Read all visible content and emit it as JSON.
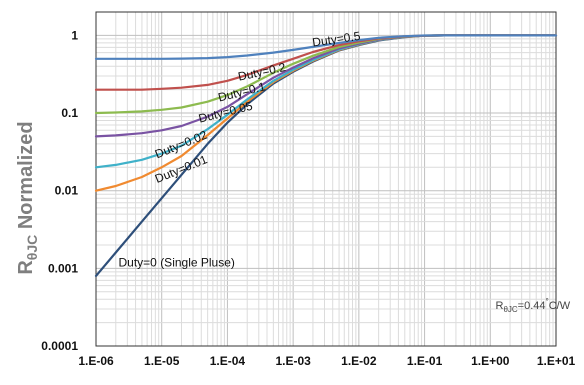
{
  "chart_data": {
    "type": "line",
    "title": "",
    "xlabel": "",
    "ylabel_main": "R",
    "ylabel_sub": "θJC",
    "ylabel_rest": " Normalized",
    "x_scale": "log",
    "y_scale": "log",
    "xlim": [
      1e-06,
      10
    ],
    "ylim": [
      0.0001,
      2
    ],
    "grid": true,
    "x_ticks": [
      1e-06,
      1e-05,
      0.0001,
      0.001,
      0.01,
      0.1,
      1,
      10
    ],
    "x_tick_labels": [
      "1.E-06",
      "1.E-05",
      "1.E-04",
      "1.E-03",
      "1.E-02",
      "1.E-01",
      "1.E+00",
      "1.E+01"
    ],
    "y_ticks": [
      0.0001,
      0.001,
      0.01,
      0.1,
      1
    ],
    "y_tick_labels": [
      "0.0001",
      "0.001",
      "0.01",
      "0.1",
      "1"
    ],
    "series": [
      {
        "name": "Duty=0 (Single Pluse)",
        "color": "#2e4f7a",
        "x": [
          1e-06,
          2e-06,
          5e-06,
          1e-05,
          2e-05,
          5e-05,
          0.0001,
          0.0002,
          0.0005,
          0.001,
          0.002,
          0.005,
          0.01,
          0.02,
          0.05,
          0.1,
          0.2,
          0.5,
          1,
          10
        ],
        "values": [
          0.0008,
          0.0016,
          0.004,
          0.008,
          0.016,
          0.04,
          0.075,
          0.13,
          0.24,
          0.34,
          0.46,
          0.64,
          0.75,
          0.86,
          0.95,
          0.99,
          1.0,
          1.0,
          1.0,
          1.0
        ]
      },
      {
        "name": "Duty=0.01",
        "color": "#f08a30",
        "x": [
          1e-06,
          2e-06,
          5e-06,
          1e-05,
          2e-05,
          5e-05,
          0.0001,
          0.0002,
          0.0005,
          0.001,
          0.002,
          0.005,
          0.01,
          0.02,
          0.05,
          0.1,
          0.2,
          0.5,
          1,
          10
        ],
        "values": [
          0.01,
          0.0115,
          0.015,
          0.02,
          0.028,
          0.052,
          0.085,
          0.14,
          0.25,
          0.35,
          0.47,
          0.65,
          0.76,
          0.87,
          0.955,
          0.99,
          1.0,
          1.0,
          1.0,
          1.0
        ]
      },
      {
        "name": "Duty=0.02",
        "color": "#3fb1c9",
        "x": [
          1e-06,
          2e-06,
          5e-06,
          1e-05,
          2e-05,
          5e-05,
          0.0001,
          0.0002,
          0.0005,
          0.001,
          0.002,
          0.005,
          0.01,
          0.02,
          0.05,
          0.1,
          0.2,
          0.5,
          1,
          10
        ],
        "values": [
          0.02,
          0.0215,
          0.025,
          0.03,
          0.038,
          0.062,
          0.095,
          0.15,
          0.26,
          0.36,
          0.48,
          0.66,
          0.77,
          0.875,
          0.957,
          0.99,
          1.0,
          1.0,
          1.0,
          1.0
        ]
      },
      {
        "name": "Duty=0.05",
        "color": "#7a53a3",
        "x": [
          1e-06,
          2e-06,
          5e-06,
          1e-05,
          2e-05,
          5e-05,
          0.0001,
          0.0002,
          0.0005,
          0.001,
          0.002,
          0.005,
          0.01,
          0.02,
          0.05,
          0.1,
          0.2,
          0.5,
          1,
          10
        ],
        "values": [
          0.05,
          0.0515,
          0.055,
          0.06,
          0.068,
          0.09,
          0.12,
          0.175,
          0.285,
          0.385,
          0.505,
          0.68,
          0.785,
          0.885,
          0.96,
          0.99,
          1.0,
          1.0,
          1.0,
          1.0
        ]
      },
      {
        "name": "Duty=0.1",
        "color": "#8dbb4f",
        "x": [
          1e-06,
          2e-06,
          5e-06,
          1e-05,
          2e-05,
          5e-05,
          0.0001,
          0.0002,
          0.0005,
          0.001,
          0.002,
          0.005,
          0.01,
          0.02,
          0.05,
          0.1,
          0.2,
          0.5,
          1,
          10
        ],
        "values": [
          0.1,
          0.1015,
          0.105,
          0.11,
          0.118,
          0.14,
          0.17,
          0.22,
          0.33,
          0.43,
          0.545,
          0.71,
          0.81,
          0.9,
          0.965,
          0.992,
          1.0,
          1.0,
          1.0,
          1.0
        ]
      },
      {
        "name": "Duty=0.2",
        "color": "#c0504d",
        "x": [
          1e-06,
          2e-06,
          5e-06,
          1e-05,
          2e-05,
          5e-05,
          0.0001,
          0.0002,
          0.0005,
          0.001,
          0.002,
          0.005,
          0.01,
          0.02,
          0.05,
          0.1,
          0.2,
          0.5,
          1,
          10
        ],
        "values": [
          0.2,
          0.2,
          0.2,
          0.205,
          0.212,
          0.23,
          0.26,
          0.31,
          0.41,
          0.5,
          0.61,
          0.75,
          0.84,
          0.915,
          0.97,
          0.993,
          1.0,
          1.0,
          1.0,
          1.0
        ]
      },
      {
        "name": "Duty=0.5",
        "color": "#4f81bd",
        "x": [
          1e-06,
          2e-06,
          5e-06,
          1e-05,
          2e-05,
          5e-05,
          0.0001,
          0.0002,
          0.0005,
          0.001,
          0.002,
          0.005,
          0.01,
          0.02,
          0.05,
          0.1,
          0.2,
          0.5,
          1,
          10
        ],
        "values": [
          0.5,
          0.5,
          0.5,
          0.5,
          0.502,
          0.51,
          0.525,
          0.55,
          0.6,
          0.65,
          0.71,
          0.8,
          0.87,
          0.93,
          0.975,
          0.995,
          1.0,
          1.0,
          1.0,
          1.0
        ]
      }
    ],
    "curve_labels": [
      {
        "text": "Duty=0.5",
        "x": 0.002,
        "y": 0.72,
        "rotate": -8
      },
      {
        "text": "Duty=0.2",
        "x": 0.00015,
        "y": 0.26,
        "rotate": -12
      },
      {
        "text": "Duty=0.1",
        "x": 7.5e-05,
        "y": 0.14,
        "rotate": -14
      },
      {
        "text": "Duty=0.05",
        "x": 3.8e-05,
        "y": 0.075,
        "rotate": -14
      },
      {
        "text": "Duty=0.02",
        "x": 8.5e-06,
        "y": 0.026,
        "rotate": -22
      },
      {
        "text": "Duty=0.01",
        "x": 8.5e-06,
        "y": 0.0125,
        "rotate": -22
      },
      {
        "text": "Duty=0 (Single Pluse)",
        "x": 2.2e-06,
        "y": 0.00105,
        "rotate": 0
      }
    ],
    "annotation": {
      "main": "R",
      "sub": "θJC",
      "value": "=0.44",
      "degree": "°",
      "unit": "C/W",
      "x": 1.2,
      "y": 0.0003
    }
  }
}
